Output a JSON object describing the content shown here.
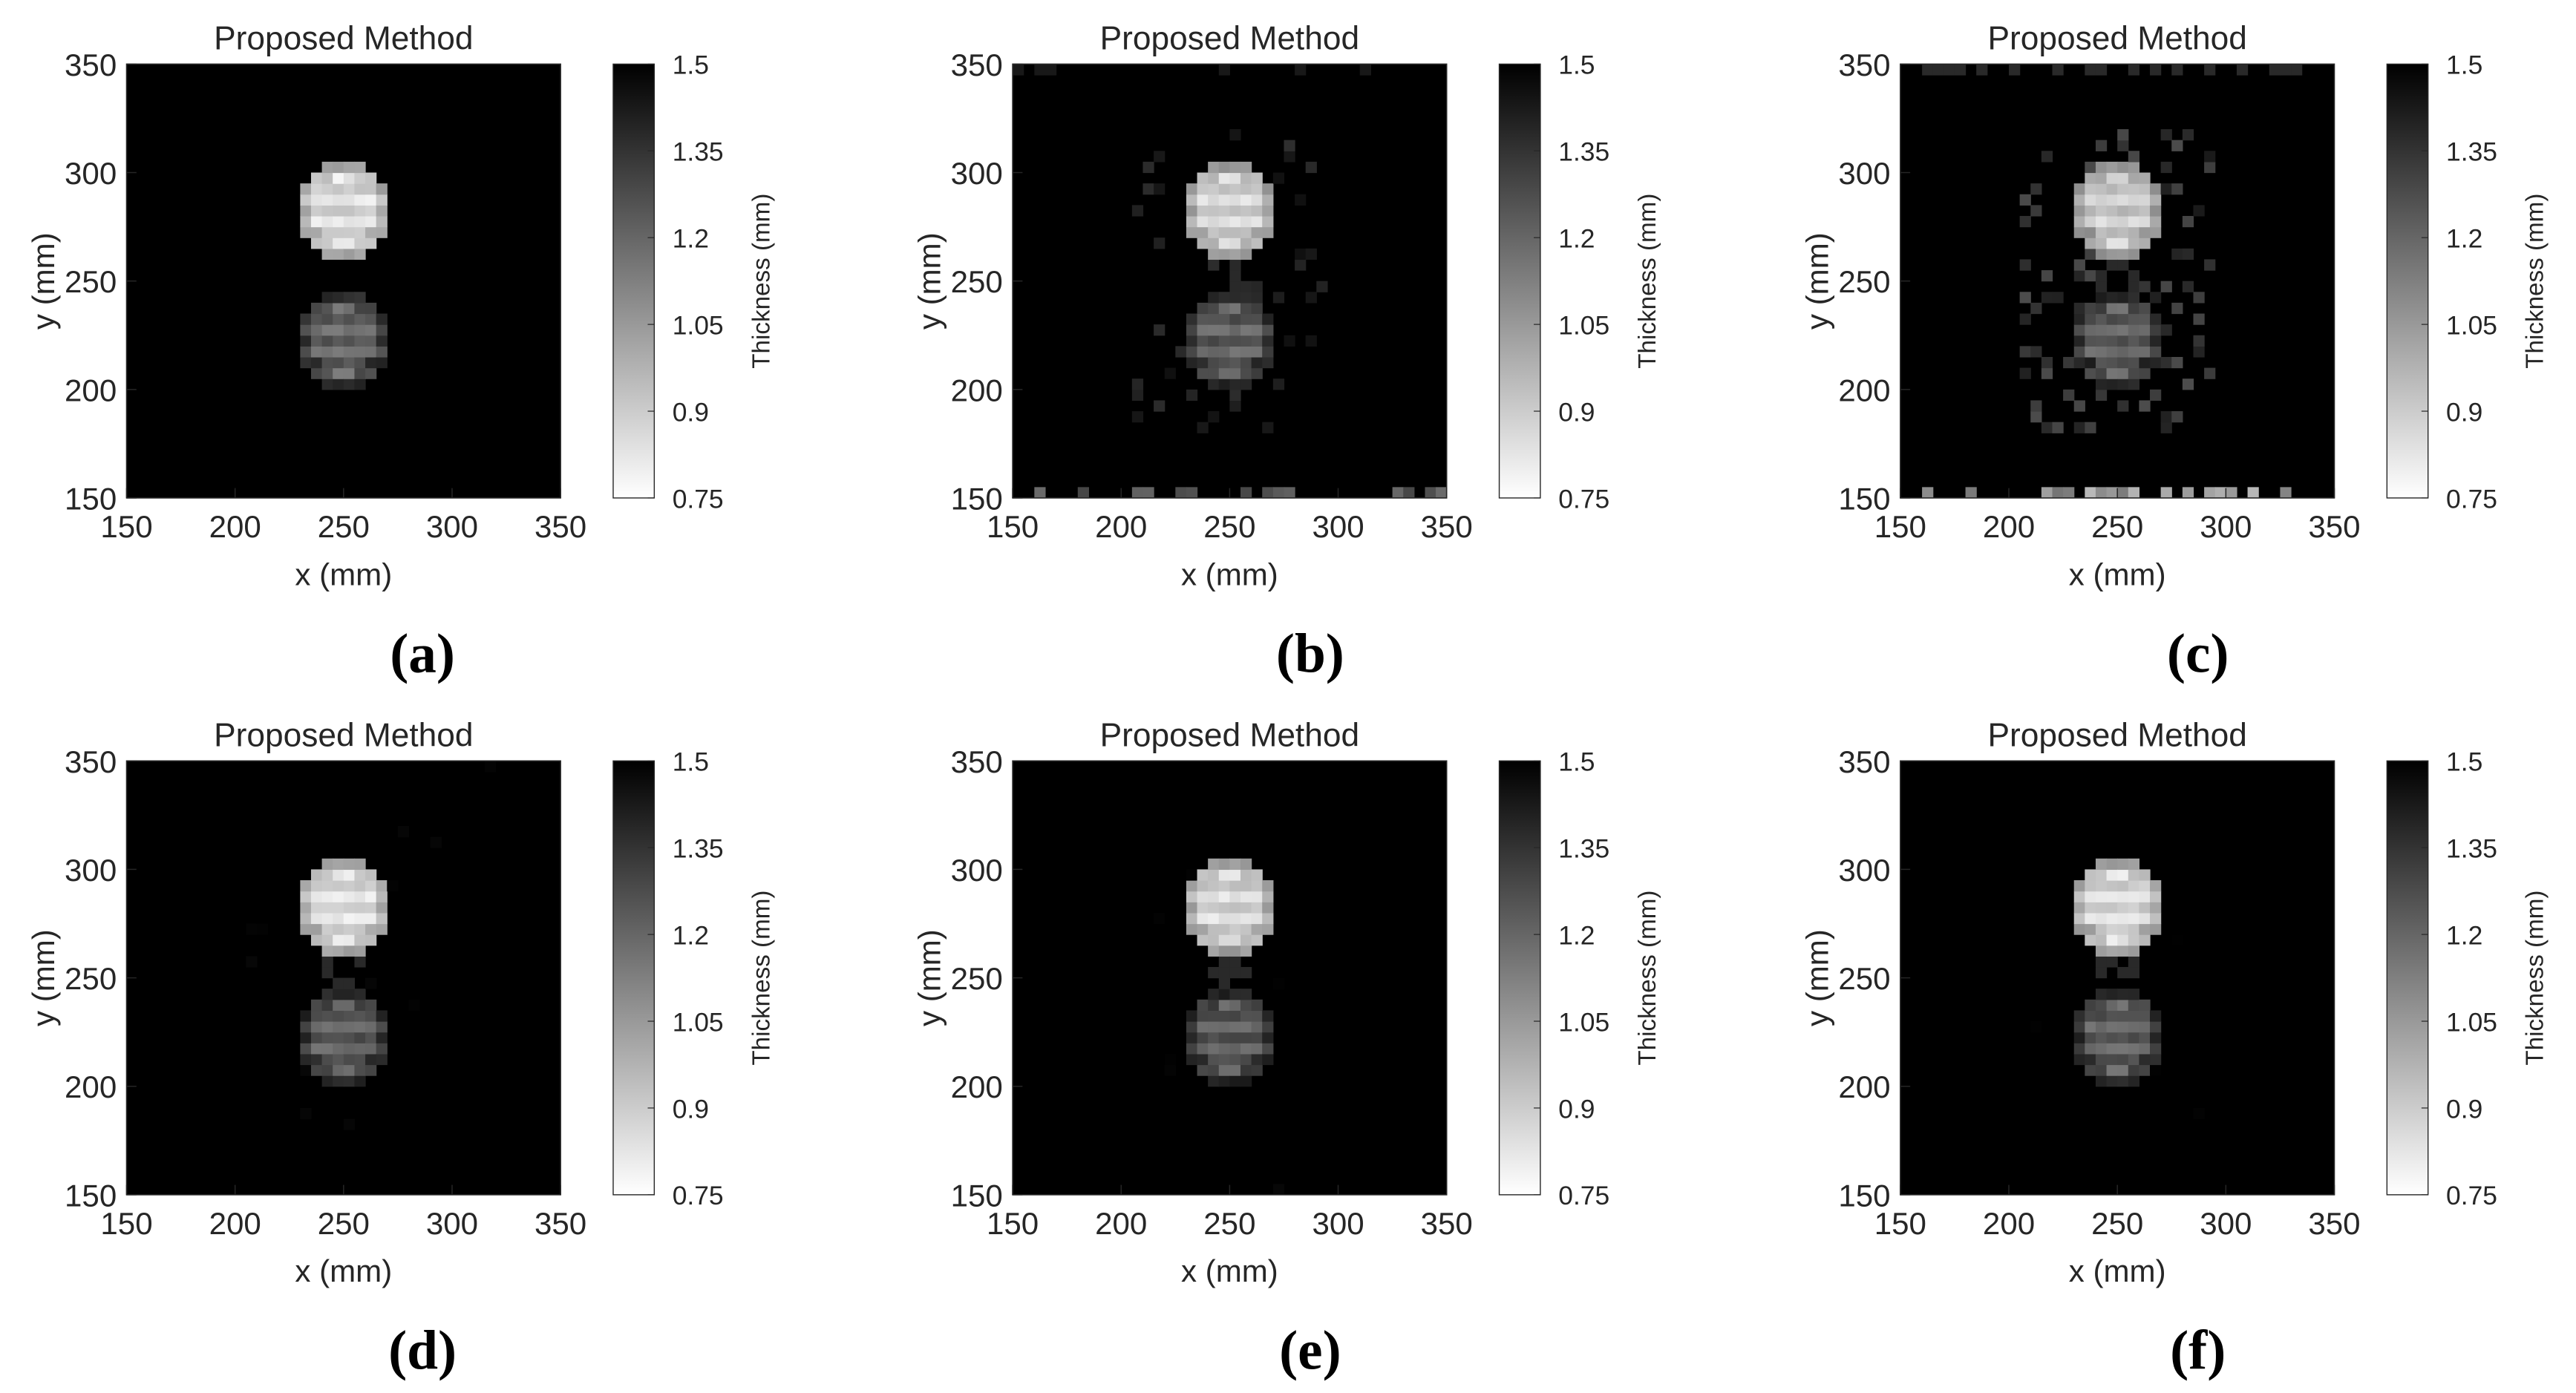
{
  "chart_data": [
    {
      "panel": "(a)",
      "type": "heatmap",
      "title": "Proposed Method",
      "xlabel": "x (mm)",
      "ylabel": "y (mm)",
      "xlim": [
        150,
        350
      ],
      "ylim": [
        150,
        350
      ],
      "x_ticks": [
        "150",
        "200",
        "250",
        "300",
        "350"
      ],
      "y_ticks": [
        "150",
        "200",
        "250",
        "300",
        "350"
      ],
      "colorbar": {
        "label": "Thickness (mm)",
        "range": [
          0.75,
          1.5
        ],
        "ticks": [
          "0.75",
          "0.9",
          "1.05",
          "1.2",
          "1.35",
          "1.5"
        ],
        "low_color": "#ffffff",
        "high_color": "#000000"
      },
      "background_value": 1.5,
      "spots": [
        {
          "center_x": 250,
          "center_y": 283,
          "radius": 22,
          "value": 0.85
        },
        {
          "center_x": 250,
          "center_y": 223,
          "radius": 22,
          "value": 1.2
        }
      ],
      "artifact_level": 0.0
    },
    {
      "panel": "(b)",
      "type": "heatmap",
      "title": "Proposed Method",
      "xlabel": "x (mm)",
      "ylabel": "y (mm)",
      "xlim": [
        150,
        350
      ],
      "ylim": [
        150,
        350
      ],
      "x_ticks": [
        "150",
        "200",
        "250",
        "300",
        "350"
      ],
      "y_ticks": [
        "150",
        "200",
        "250",
        "300",
        "350"
      ],
      "colorbar": {
        "label": "Thickness (mm)",
        "range": [
          0.75,
          1.5
        ],
        "ticks": [
          "0.75",
          "0.9",
          "1.05",
          "1.2",
          "1.35",
          "1.5"
        ],
        "low_color": "#ffffff",
        "high_color": "#000000"
      },
      "background_value": 1.5,
      "spots": [
        {
          "center_x": 250,
          "center_y": 283,
          "radius": 22,
          "value": 0.88
        },
        {
          "center_x": 250,
          "center_y": 223,
          "radius": 22,
          "value": 1.22
        }
      ],
      "artifact_level": 0.6
    },
    {
      "panel": "(c)",
      "type": "heatmap",
      "title": "Proposed Method",
      "xlabel": "x (mm)",
      "ylabel": "y (mm)",
      "xlim": [
        150,
        350
      ],
      "ylim": [
        150,
        350
      ],
      "x_ticks": [
        "150",
        "200",
        "250",
        "300",
        "350"
      ],
      "y_ticks": [
        "150",
        "200",
        "250",
        "300",
        "350"
      ],
      "colorbar": {
        "label": "Thickness (mm)",
        "range": [
          0.75,
          1.5
        ],
        "ticks": [
          "0.75",
          "0.9",
          "1.05",
          "1.2",
          "1.35",
          "1.5"
        ],
        "low_color": "#ffffff",
        "high_color": "#000000"
      },
      "background_value": 1.5,
      "spots": [
        {
          "center_x": 250,
          "center_y": 283,
          "radius": 22,
          "value": 0.9
        },
        {
          "center_x": 250,
          "center_y": 223,
          "radius": 22,
          "value": 1.22
        }
      ],
      "artifact_level": 1.0
    },
    {
      "panel": "(d)",
      "type": "heatmap",
      "title": "Proposed Method",
      "xlabel": "x (mm)",
      "ylabel": "y (mm)",
      "xlim": [
        150,
        350
      ],
      "ylim": [
        150,
        350
      ],
      "x_ticks": [
        "150",
        "200",
        "250",
        "300",
        "350"
      ],
      "y_ticks": [
        "150",
        "200",
        "250",
        "300",
        "350"
      ],
      "colorbar": {
        "label": "Thickness (mm)",
        "range": [
          0.75,
          1.5
        ],
        "ticks": [
          "0.75",
          "0.9",
          "1.05",
          "1.2",
          "1.35",
          "1.5"
        ],
        "low_color": "#ffffff",
        "high_color": "#000000"
      },
      "background_value": 1.5,
      "spots": [
        {
          "center_x": 250,
          "center_y": 283,
          "radius": 22,
          "value": 0.85
        },
        {
          "center_x": 250,
          "center_y": 223,
          "radius": 22,
          "value": 1.22
        }
      ],
      "artifact_level": 0.1
    },
    {
      "panel": "(e)",
      "type": "heatmap",
      "title": "Proposed Method",
      "xlabel": "x (mm)",
      "ylabel": "y (mm)",
      "xlim": [
        150,
        350
      ],
      "ylim": [
        150,
        350
      ],
      "x_ticks": [
        "150",
        "200",
        "250",
        "300",
        "350"
      ],
      "y_ticks": [
        "150",
        "200",
        "250",
        "300",
        "350"
      ],
      "colorbar": {
        "label": "Thickness (mm)",
        "range": [
          0.75,
          1.5
        ],
        "ticks": [
          "0.75",
          "0.9",
          "1.05",
          "1.2",
          "1.35",
          "1.5"
        ],
        "low_color": "#ffffff",
        "high_color": "#000000"
      },
      "background_value": 1.5,
      "spots": [
        {
          "center_x": 250,
          "center_y": 283,
          "radius": 22,
          "value": 0.87
        },
        {
          "center_x": 250,
          "center_y": 223,
          "radius": 22,
          "value": 1.23
        }
      ],
      "artifact_level": 0.05
    },
    {
      "panel": "(f)",
      "type": "heatmap",
      "title": "Proposed Method",
      "xlabel": "x (mm)",
      "ylabel": "y (mm)",
      "xlim": [
        150,
        350
      ],
      "ylim": [
        150,
        350
      ],
      "x_ticks": [
        "150",
        "200",
        "250",
        "300",
        "350"
      ],
      "y_ticks": [
        "150",
        "200",
        "250",
        "300",
        "350"
      ],
      "colorbar": {
        "label": "Thickness (mm)",
        "range": [
          0.75,
          1.5
        ],
        "ticks": [
          "0.75",
          "0.9",
          "1.05",
          "1.2",
          "1.35",
          "1.5"
        ],
        "low_color": "#ffffff",
        "high_color": "#000000"
      },
      "background_value": 1.5,
      "spots": [
        {
          "center_x": 250,
          "center_y": 283,
          "radius": 22,
          "value": 0.86
        },
        {
          "center_x": 250,
          "center_y": 223,
          "radius": 22,
          "value": 1.22
        }
      ],
      "artifact_level": 0.05
    }
  ]
}
